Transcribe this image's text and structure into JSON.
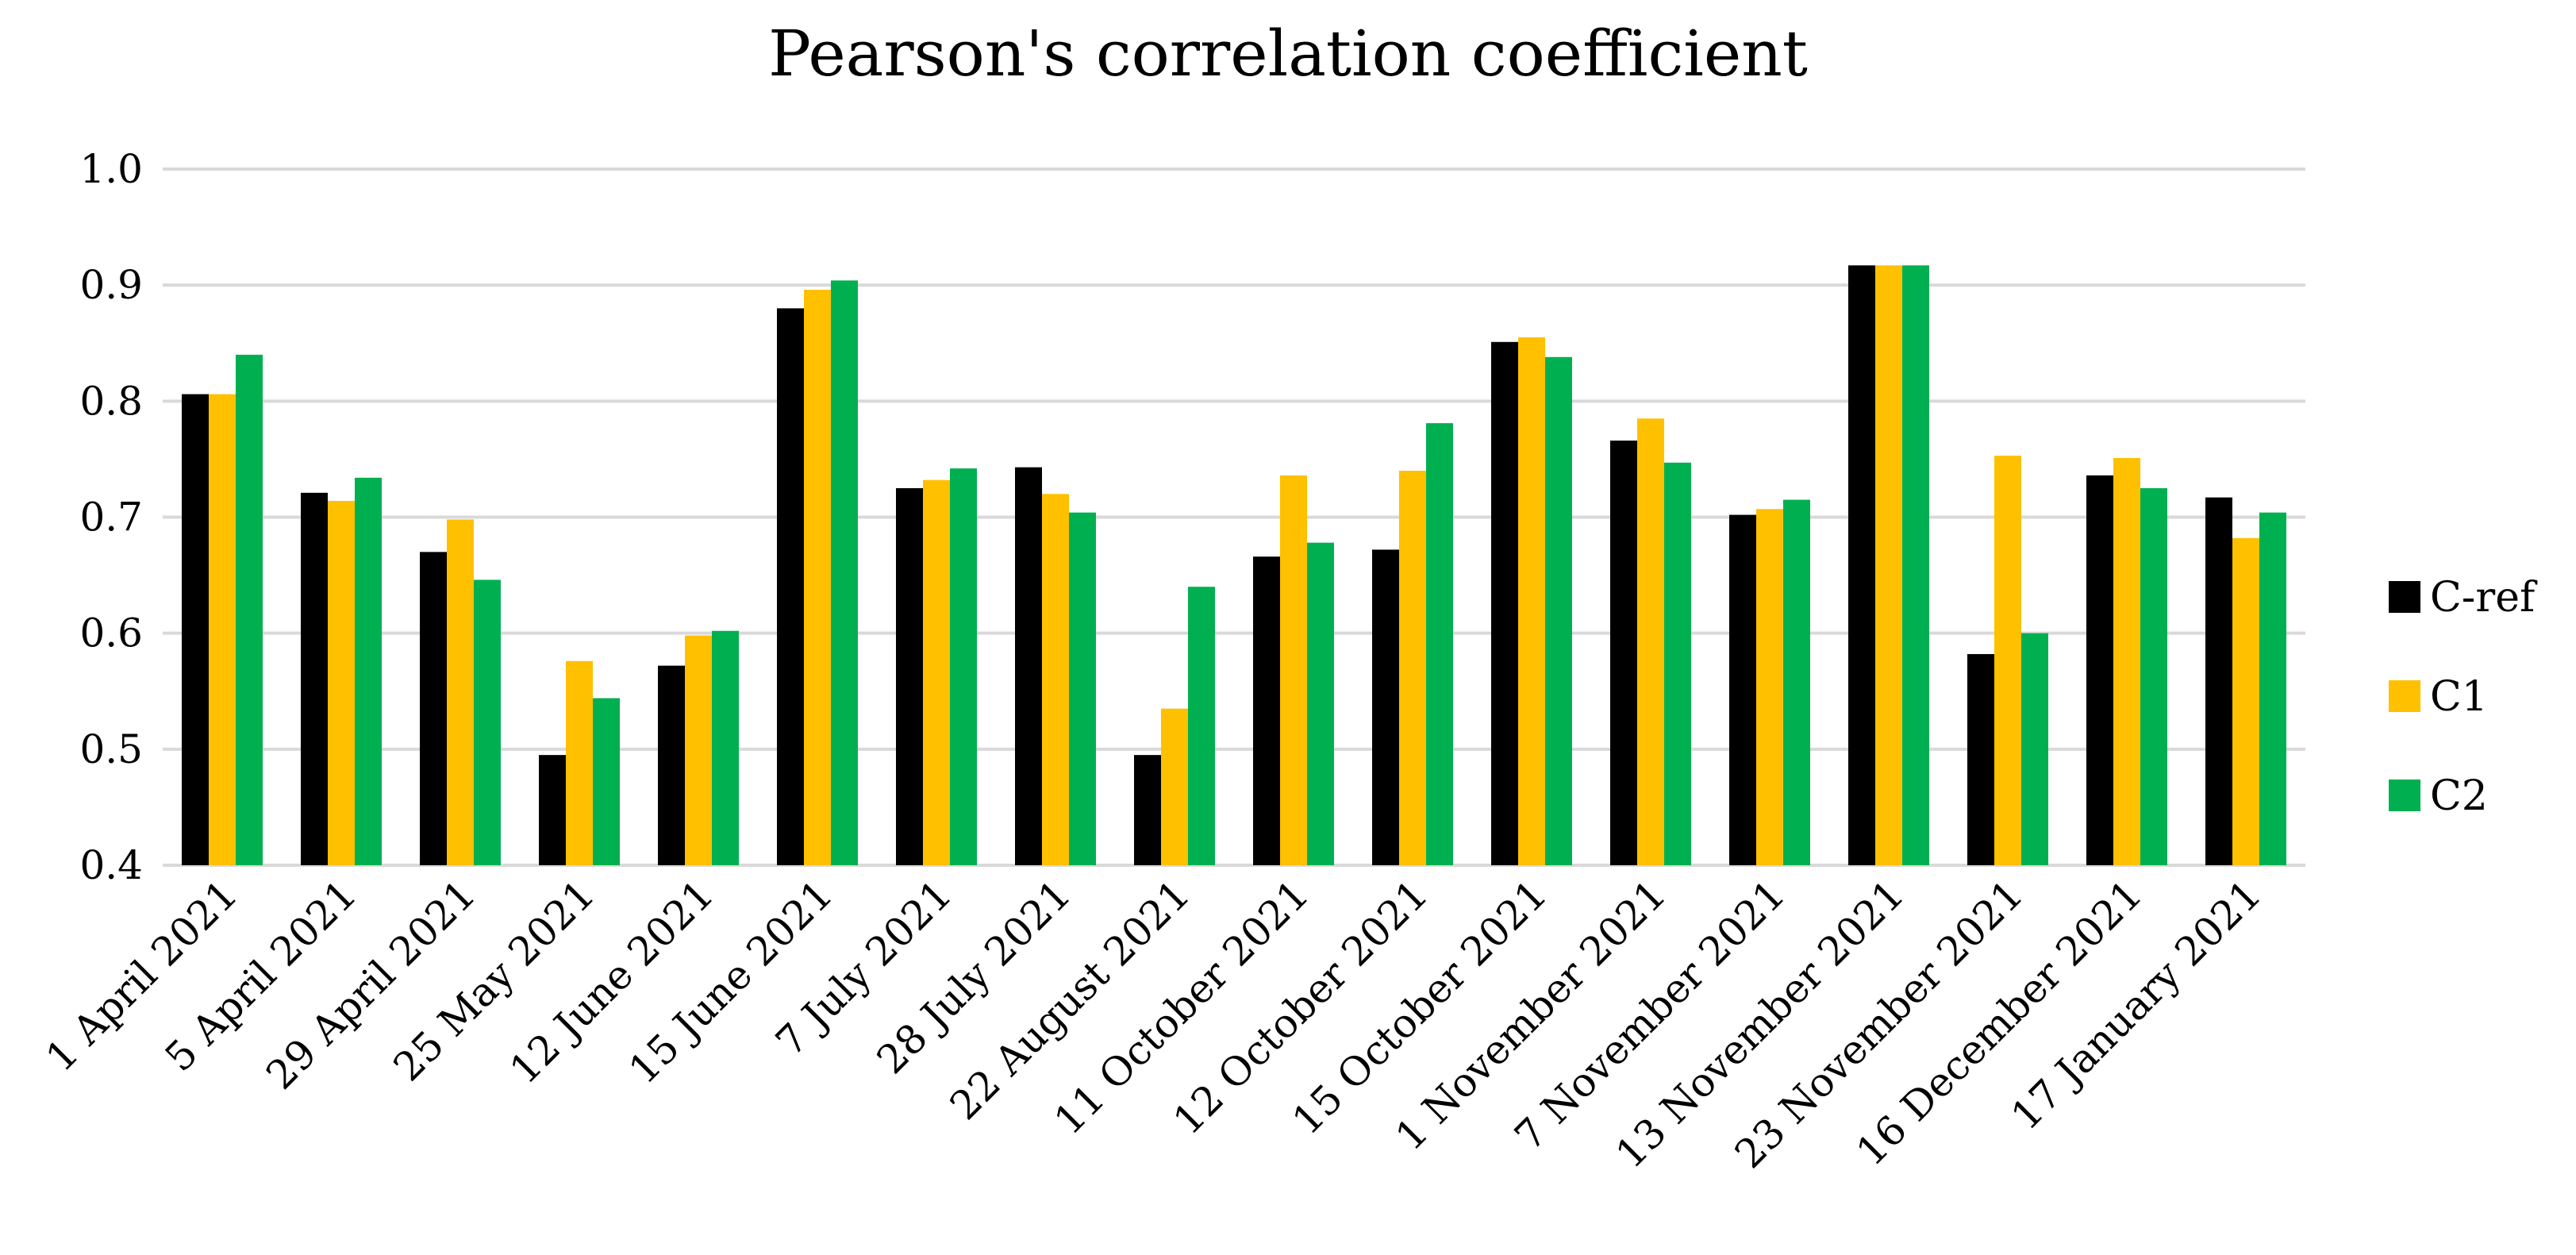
{
  "chart_data": {
    "type": "bar",
    "title": "Pearson's correlation coefficient",
    "xlabel": "",
    "ylabel": "",
    "ylim": [
      0.4,
      1.0
    ],
    "yticks": [
      0.4,
      0.5,
      0.6,
      0.7,
      0.8,
      0.9,
      1.0
    ],
    "ytick_labels": [
      "0.4",
      "0.5",
      "0.6",
      "0.7",
      "0.8",
      "0.9",
      "1.0"
    ],
    "grid": true,
    "legend_position": "right",
    "categories": [
      "1 April 2021",
      "5 April 2021",
      "29 April 2021",
      "25 May 2021",
      "12 June 2021",
      "15 June 2021",
      "7 July 2021",
      "28 July 2021",
      "22 August 2021",
      "11 October 2021",
      "12 October 2021",
      "15 October 2021",
      "1 November 2021",
      "7 November 2021",
      "13 November 2021",
      "23 November 2021",
      "16 December 2021",
      "17 January 2021"
    ],
    "series": [
      {
        "name": "C-ref",
        "color": "#000000",
        "values": [
          0.806,
          0.721,
          0.67,
          0.495,
          0.572,
          0.88,
          0.725,
          0.743,
          0.495,
          0.666,
          0.672,
          0.851,
          0.766,
          0.702,
          0.917,
          0.582,
          0.736,
          0.717
        ]
      },
      {
        "name": "C1",
        "color": "#FFC000",
        "values": [
          0.806,
          0.714,
          0.698,
          0.576,
          0.598,
          0.896,
          0.732,
          0.72,
          0.535,
          0.736,
          0.74,
          0.855,
          0.785,
          0.707,
          0.917,
          0.753,
          0.751,
          0.682
        ]
      },
      {
        "name": "C2",
        "color": "#00B050",
        "values": [
          0.84,
          0.734,
          0.646,
          0.544,
          0.602,
          0.904,
          0.742,
          0.704,
          0.64,
          0.678,
          0.781,
          0.838,
          0.747,
          0.715,
          0.917,
          0.6,
          0.725,
          0.704
        ]
      }
    ]
  }
}
